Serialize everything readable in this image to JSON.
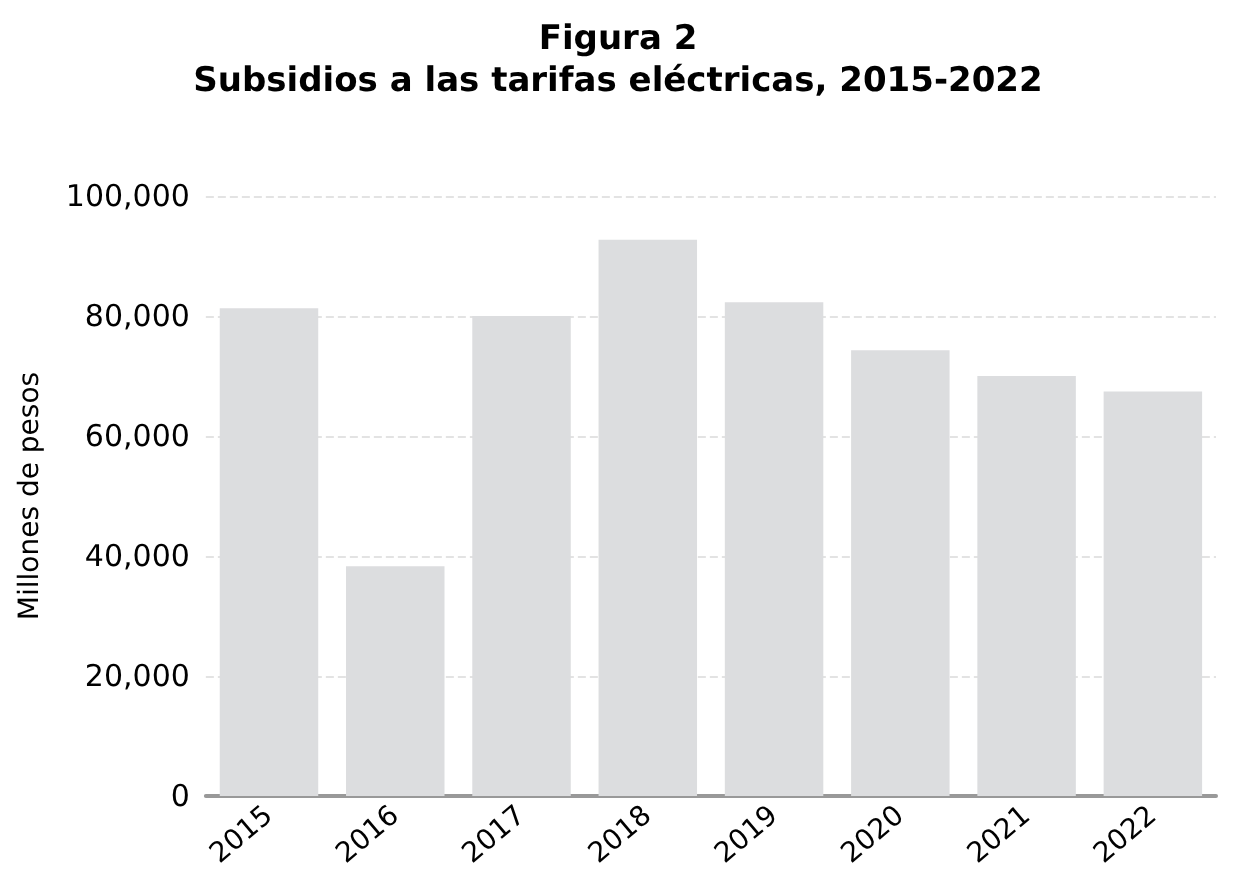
{
  "chart_data": {
    "type": "bar",
    "title": "Figura 2",
    "subtitle": "Subsidios a las tarifas eléctricas, 2015-2022",
    "ylabel": "Millones de pesos",
    "categories": [
      "2015",
      "2016",
      "2017",
      "2018",
      "2019",
      "2020",
      "2021",
      "2022"
    ],
    "values": [
      81300,
      38300,
      80000,
      92700,
      82300,
      74300,
      70000,
      67400
    ],
    "color": "#dcdddf",
    "ylim": [
      0,
      100000
    ],
    "yticks": [
      0,
      {
        "value": 20000,
        "label": "20,000"
      },
      {
        "value": 40000,
        "label": "40,000"
      },
      {
        "value": 60000,
        "label": "60,000"
      },
      {
        "value": 80000,
        "label": "80,000"
      },
      {
        "value": 100000,
        "label": "100,000"
      }
    ],
    "grid": "y"
  }
}
